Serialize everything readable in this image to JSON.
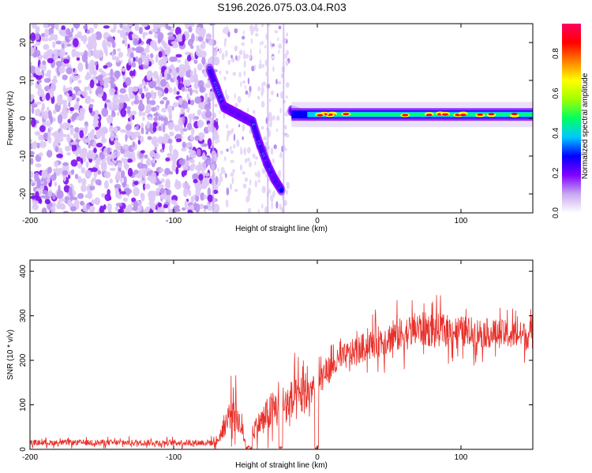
{
  "title": "S196.2026.075.03.04.R03",
  "chart_data": [
    {
      "type": "heatmap",
      "name": "spectrogram",
      "xlabel": "Height of straight line (km)",
      "ylabel": "Frequency (Hz)",
      "xlim": [
        -200,
        150
      ],
      "ylim": [
        -25,
        25
      ],
      "xticks": [
        -200,
        -100,
        0,
        100
      ],
      "xtick_labels": [
        "-200",
        "-100",
        "0",
        "100"
      ],
      "yticks": [
        -20,
        -10,
        0,
        10,
        20
      ],
      "ytick_labels": [
        "-20",
        "-10",
        "0",
        "10",
        "20"
      ],
      "colorbar": {
        "label": "Normalized spectral amplitude",
        "range": [
          0,
          0.95
        ],
        "ticks": [
          0.0,
          0.2,
          0.4,
          0.6,
          0.8
        ],
        "tick_labels": [
          "0.0",
          "0.2",
          "0.4",
          "0.6",
          "0.8"
        ],
        "colors": [
          "#ffffff",
          "#c8a8f0",
          "#8000ff",
          "#0000ff",
          "#00c8ff",
          "#00ff60",
          "#a0ff00",
          "#ffff00",
          "#ff8000",
          "#ff0000",
          "#ff0060"
        ]
      },
      "ridge": [
        {
          "x": -75,
          "y": 13
        },
        {
          "x": -70,
          "y": 8
        },
        {
          "x": -65,
          "y": 3
        },
        {
          "x": -60,
          "y": 2
        },
        {
          "x": -55,
          "y": 1
        },
        {
          "x": -50,
          "y": 0
        },
        {
          "x": -45,
          "y": -1
        },
        {
          "x": -40,
          "y": -7
        },
        {
          "x": -35,
          "y": -12
        },
        {
          "x": -30,
          "y": -16
        },
        {
          "x": -25,
          "y": -19
        },
        {
          "x": -18,
          "y": 2
        },
        {
          "x": -10,
          "y": 1
        },
        {
          "x": 0,
          "y": 1
        },
        {
          "x": 50,
          "y": 1
        },
        {
          "x": 100,
          "y": 1
        },
        {
          "x": 150,
          "y": 1
        }
      ]
    },
    {
      "type": "line",
      "name": "snr",
      "xlabel": "Height of straight line (km)",
      "ylabel": "SNR (10 * v/v)",
      "xlim": [
        -200,
        150
      ],
      "ylim": [
        0,
        425
      ],
      "xticks": [
        -200,
        -100,
        0,
        100
      ],
      "xtick_labels": [
        "-200",
        "-100",
        "0",
        "100"
      ],
      "yticks": [
        0,
        100,
        200,
        300,
        400
      ],
      "ytick_labels": [
        "0",
        "100",
        "200",
        "300",
        "400"
      ],
      "color": "#e8302a",
      "envelope": [
        {
          "x": -200,
          "base": 15,
          "spread": 12
        },
        {
          "x": -70,
          "base": 15,
          "spread": 15
        },
        {
          "x": -58,
          "base": 100,
          "spread": 90
        },
        {
          "x": -50,
          "base": 15,
          "spread": 15
        },
        {
          "x": -40,
          "base": 60,
          "spread": 60
        },
        {
          "x": -30,
          "base": 90,
          "spread": 100
        },
        {
          "x": -20,
          "base": 100,
          "spread": 110
        },
        {
          "x": -5,
          "base": 130,
          "spread": 80
        },
        {
          "x": 0,
          "base": 160,
          "spread": 60
        },
        {
          "x": 20,
          "base": 210,
          "spread": 60
        },
        {
          "x": 40,
          "base": 240,
          "spread": 70
        },
        {
          "x": 70,
          "base": 270,
          "spread": 80
        },
        {
          "x": 100,
          "base": 265,
          "spread": 70
        },
        {
          "x": 150,
          "base": 255,
          "spread": 60
        }
      ]
    }
  ]
}
